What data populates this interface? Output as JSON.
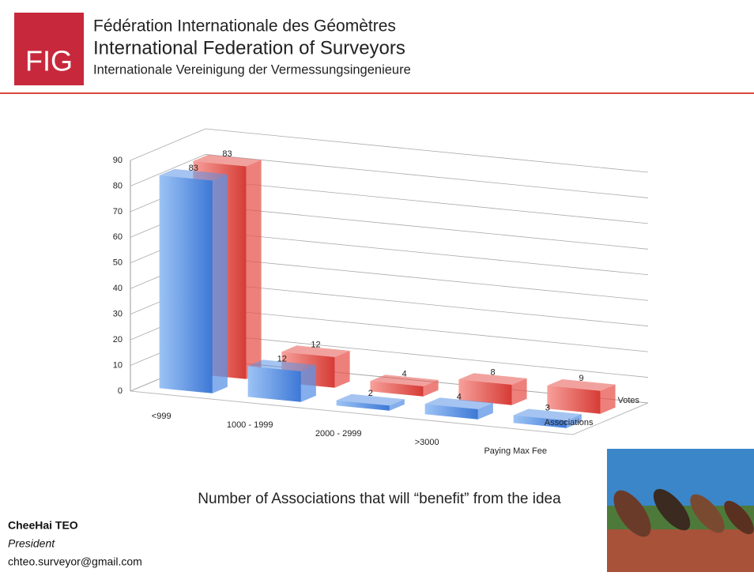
{
  "header": {
    "logo": "FIG",
    "line1": "Fédération Internationale des Géomètres",
    "line2": "International Federation of Surveyors",
    "line3": "Internationale Vereinigung der Vermessungsingenieure"
  },
  "chart_data": {
    "type": "bar3d",
    "categories": [
      "<999",
      "1000 - 1999",
      "2000 - 2999",
      ">3000",
      "Paying Max Fee"
    ],
    "series": [
      {
        "name": "Associations",
        "color": "#5b93e6",
        "values": [
          83,
          12,
          2,
          4,
          3
        ]
      },
      {
        "name": "Votes",
        "color": "#e8554f",
        "values": [
          83,
          12,
          4,
          8,
          9
        ]
      }
    ],
    "ylim": [
      0,
      90
    ],
    "yticks": [
      0,
      10,
      20,
      30,
      40,
      50,
      60,
      70,
      80,
      90
    ],
    "grid": true
  },
  "caption": "Number of Associations that will “benefit” from the idea",
  "footer": {
    "name": "CheeHai TEO",
    "role": "President",
    "email": "chteo.surveyor@gmail.com"
  }
}
